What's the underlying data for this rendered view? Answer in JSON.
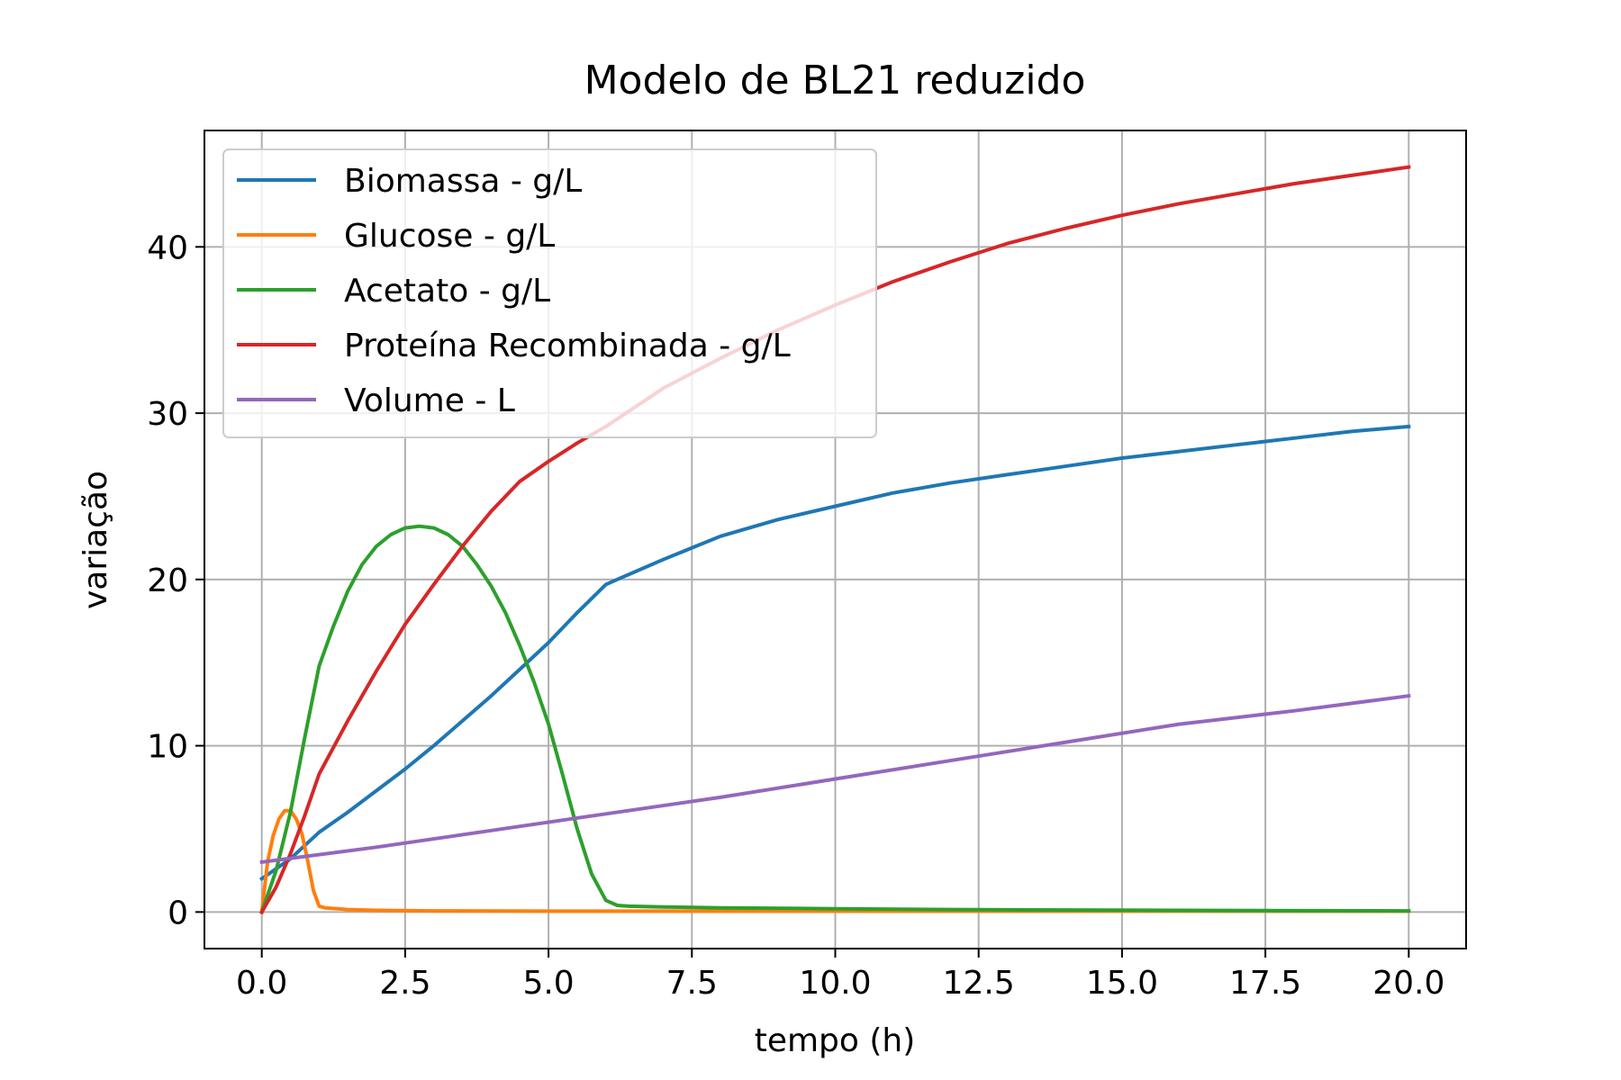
{
  "chart_data": {
    "type": "line",
    "title": "Modelo de BL21 reduzido",
    "xlabel": "tempo (h)",
    "ylabel": "variação",
    "xlim": [
      -1.0,
      21.0
    ],
    "ylim": [
      -2.2,
      47.0
    ],
    "xticks": [
      0.0,
      2.5,
      5.0,
      7.5,
      10.0,
      12.5,
      15.0,
      17.5,
      20.0
    ],
    "xtick_labels": [
      "0.0",
      "2.5",
      "5.0",
      "7.5",
      "10.0",
      "12.5",
      "15.0",
      "17.5",
      "20.0"
    ],
    "yticks": [
      0,
      10,
      20,
      30,
      40
    ],
    "ytick_labels": [
      "0",
      "10",
      "20",
      "30",
      "40"
    ],
    "grid": true,
    "legend_position": "top-left",
    "series": [
      {
        "name": "Biomassa - g/L",
        "color": "#1f77b4",
        "x": [
          0,
          0.5,
          1.0,
          1.5,
          2,
          2.5,
          3,
          3.5,
          4,
          4.5,
          5,
          5.5,
          6,
          6.2,
          7,
          8,
          9,
          10,
          11,
          12,
          13,
          14,
          15,
          16,
          17,
          18,
          19,
          20
        ],
        "y": [
          2.0,
          3.2,
          4.8,
          6.0,
          7.3,
          8.6,
          10.0,
          11.5,
          13.0,
          14.6,
          16.2,
          18.0,
          19.7,
          20.0,
          21.2,
          22.6,
          23.6,
          24.4,
          25.2,
          25.8,
          26.3,
          26.8,
          27.3,
          27.7,
          28.1,
          28.5,
          28.9,
          29.2
        ]
      },
      {
        "name": "Glucose - g/L",
        "color": "#ff7f0e",
        "x": [
          0,
          0.1,
          0.2,
          0.3,
          0.4,
          0.5,
          0.6,
          0.7,
          0.8,
          0.9,
          1.0,
          1.1,
          1.5,
          2,
          3,
          5,
          7,
          10,
          15,
          20
        ],
        "y": [
          0,
          3.0,
          4.6,
          5.6,
          6.1,
          6.1,
          5.6,
          4.7,
          3.1,
          1.3,
          0.35,
          0.25,
          0.15,
          0.1,
          0.07,
          0.05,
          0.05,
          0.05,
          0.05,
          0.05
        ]
      },
      {
        "name": "Acetato - g/L",
        "color": "#2ca02c",
        "x": [
          0,
          0.25,
          0.5,
          0.75,
          1.0,
          1.25,
          1.5,
          1.75,
          2.0,
          2.25,
          2.5,
          2.75,
          3.0,
          3.25,
          3.5,
          3.75,
          4.0,
          4.25,
          4.5,
          4.75,
          5.0,
          5.25,
          5.5,
          5.75,
          6.0,
          6.2,
          6.4,
          7,
          8,
          10,
          12,
          14,
          16,
          18,
          20
        ],
        "y": [
          0,
          2.5,
          6.0,
          10.5,
          14.8,
          17.2,
          19.3,
          20.9,
          22.0,
          22.7,
          23.1,
          23.2,
          23.1,
          22.7,
          22.0,
          20.9,
          19.6,
          18.0,
          16.0,
          13.8,
          11.3,
          8.2,
          5.0,
          2.3,
          0.7,
          0.4,
          0.35,
          0.3,
          0.25,
          0.2,
          0.15,
          0.12,
          0.1,
          0.08,
          0.07
        ]
      },
      {
        "name": "Proteína Recombinada - g/L",
        "color": "#d62728",
        "x": [
          0,
          0.25,
          0.5,
          0.75,
          1.0,
          1.5,
          2,
          2.5,
          3,
          3.5,
          4,
          4.5,
          5,
          5.5,
          6,
          7,
          8,
          9,
          10,
          11,
          12,
          13,
          14,
          15,
          16,
          17,
          18,
          19,
          20
        ],
        "y": [
          0,
          1.5,
          3.5,
          5.8,
          8.3,
          11.5,
          14.5,
          17.3,
          19.7,
          22.0,
          24.1,
          25.9,
          27.1,
          28.2,
          29.2,
          31.5,
          33.3,
          35.0,
          36.5,
          37.9,
          39.1,
          40.2,
          41.1,
          41.9,
          42.6,
          43.2,
          43.8,
          44.3,
          44.8
        ]
      },
      {
        "name": "Volume - L",
        "color": "#9467bd",
        "x": [
          0,
          2,
          4,
          6,
          8,
          10,
          12,
          14,
          16,
          18,
          20
        ],
        "y": [
          3.0,
          3.9,
          4.9,
          5.9,
          6.9,
          8.0,
          9.1,
          10.2,
          11.3,
          12.1,
          13.0
        ]
      }
    ]
  }
}
